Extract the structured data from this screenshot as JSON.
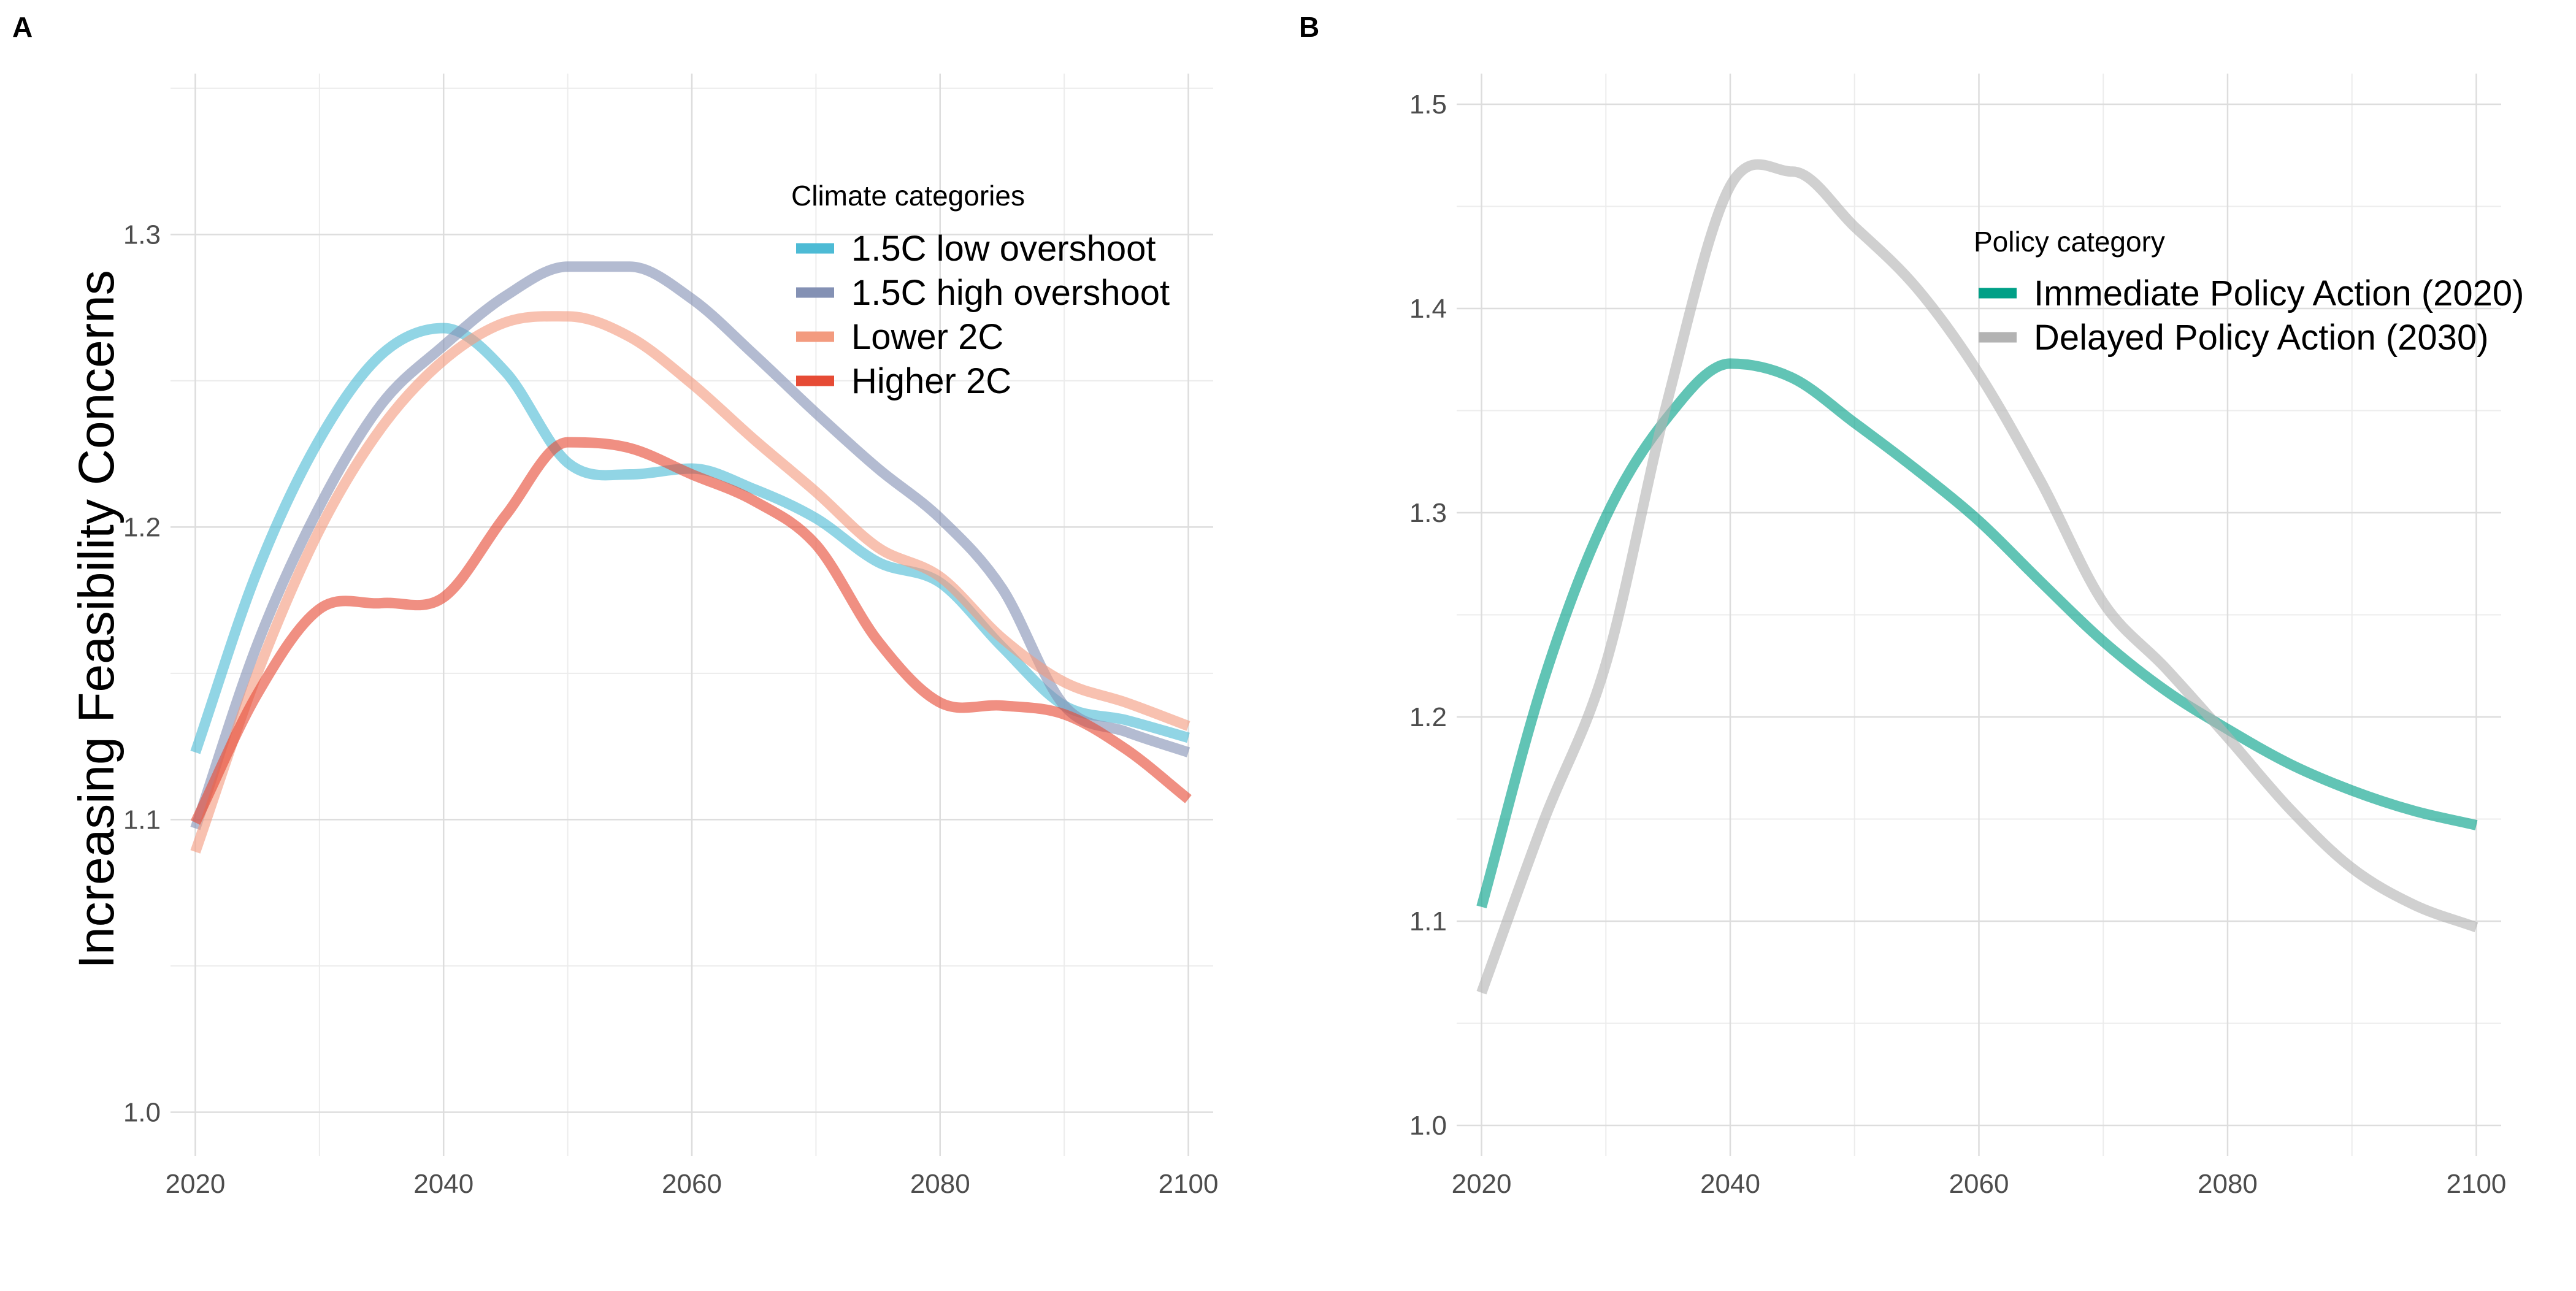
{
  "panels": [
    {
      "letter": "A",
      "ylabel": "Increasing Feasibility Concerns",
      "legend_title": "Climate categories",
      "legend_position": "top-right",
      "x_ticks": [
        "2020",
        "2040",
        "2060",
        "2080",
        "2100"
      ],
      "y_ticks": [
        "1.0",
        "1.1",
        "1.2",
        "1.3"
      ]
    },
    {
      "letter": "B",
      "ylabel": "",
      "legend_title": "Policy category",
      "legend_position": "top-right",
      "x_ticks": [
        "2020",
        "2040",
        "2060",
        "2080",
        "2100"
      ],
      "y_ticks": [
        "1.0",
        "1.1",
        "1.2",
        "1.3",
        "1.4",
        "1.5"
      ]
    }
  ],
  "chart_data": [
    {
      "type": "line",
      "title": "",
      "xlabel": "",
      "ylabel": "Increasing Feasibility Concerns",
      "xlim": [
        2018,
        2102
      ],
      "ylim": [
        0.985,
        1.355
      ],
      "grid": true,
      "legend_title": "Climate categories",
      "x": [
        2020,
        2025,
        2030,
        2035,
        2040,
        2045,
        2050,
        2055,
        2060,
        2065,
        2070,
        2075,
        2080,
        2085,
        2090,
        2095,
        2100
      ],
      "series": [
        {
          "name": "1.5C low overshoot",
          "color": "#4DBBD5",
          "values": [
            1.123,
            1.185,
            1.23,
            1.259,
            1.268,
            1.253,
            1.222,
            1.218,
            1.22,
            1.213,
            1.203,
            1.188,
            1.181,
            1.159,
            1.139,
            1.134,
            1.128
          ]
        },
        {
          "name": "1.5C high overshoot",
          "color": "#8491B4",
          "values": [
            1.097,
            1.16,
            1.207,
            1.242,
            1.262,
            1.279,
            1.289,
            1.289,
            1.278,
            1.259,
            1.239,
            1.22,
            1.203,
            1.179,
            1.139,
            1.13,
            1.123
          ]
        },
        {
          "name": "Lower 2C",
          "color": "#F39B7F",
          "values": [
            1.089,
            1.15,
            1.199,
            1.234,
            1.257,
            1.27,
            1.272,
            1.265,
            1.249,
            1.23,
            1.212,
            1.193,
            1.183,
            1.162,
            1.147,
            1.14,
            1.132
          ]
        },
        {
          "name": "Higher 2C",
          "color": "#E64B35",
          "values": [
            1.099,
            1.143,
            1.172,
            1.174,
            1.176,
            1.204,
            1.229,
            1.227,
            1.218,
            1.209,
            1.194,
            1.161,
            1.14,
            1.139,
            1.136,
            1.124,
            1.107
          ]
        }
      ]
    },
    {
      "type": "line",
      "title": "",
      "xlabel": "",
      "ylabel": "",
      "xlim": [
        2018,
        2102
      ],
      "ylim": [
        0.985,
        1.515
      ],
      "grid": true,
      "legend_title": "Policy category",
      "x": [
        2020,
        2025,
        2030,
        2035,
        2040,
        2045,
        2050,
        2055,
        2060,
        2065,
        2070,
        2075,
        2080,
        2085,
        2090,
        2095,
        2100
      ],
      "series": [
        {
          "name": "Immediate Policy Action (2020)",
          "color": "#00A087",
          "values": [
            1.107,
            1.218,
            1.298,
            1.347,
            1.373,
            1.366,
            1.344,
            1.321,
            1.296,
            1.266,
            1.237,
            1.213,
            1.194,
            1.177,
            1.164,
            1.154,
            1.147
          ]
        },
        {
          "name": "Delayed Policy Action (2030)",
          "color": "#B3B3B3",
          "values": [
            1.065,
            1.149,
            1.226,
            1.356,
            1.46,
            1.467,
            1.44,
            1.41,
            1.368,
            1.315,
            1.256,
            1.224,
            1.19,
            1.155,
            1.126,
            1.108,
            1.097
          ]
        }
      ]
    }
  ]
}
